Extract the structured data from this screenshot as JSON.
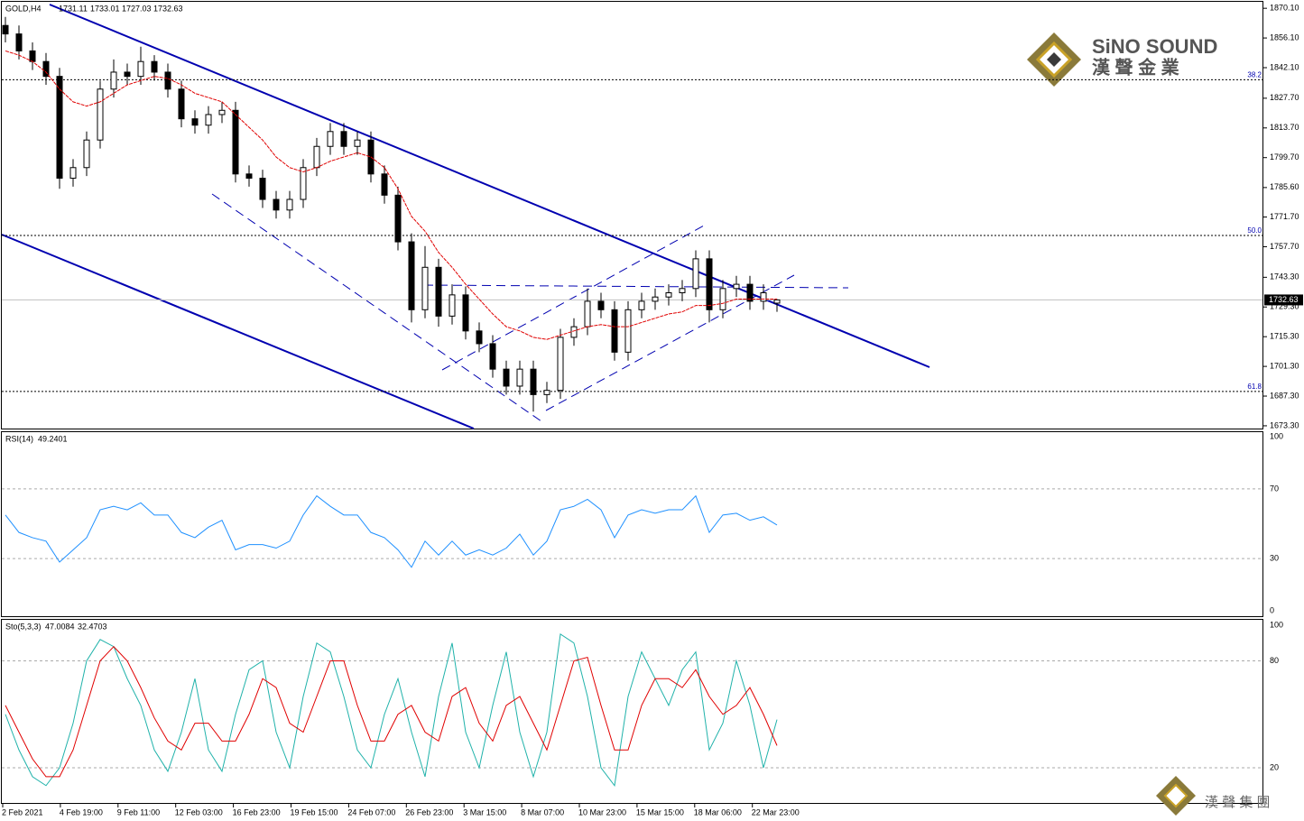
{
  "chart_data": {
    "type": "candlestick",
    "symbol": "GOLD,H4",
    "x_labels": [
      "2 Feb 2021",
      "4 Feb 19:00",
      "9 Feb 11:00",
      "12 Feb 03:00",
      "16 Feb 23:00",
      "19 Feb 15:00",
      "24 Feb 07:00",
      "26 Feb 23:00",
      "3 Mar 15:00",
      "8 Mar 07:00",
      "10 Mar 23:00",
      "15 Mar 15:00",
      "18 Mar 06:00",
      "22 Mar 23:00"
    ],
    "open": [
      1862,
      1858,
      1850,
      1845,
      1838,
      1790,
      1795,
      1808,
      1832,
      1840,
      1838,
      1845,
      1840,
      1832,
      1818,
      1815,
      1820,
      1822,
      1792,
      1790,
      1780,
      1775,
      1780,
      1795,
      1805,
      1812,
      1805,
      1808,
      1792,
      1782,
      1760,
      1728,
      1748,
      1725,
      1735,
      1718,
      1712,
      1700,
      1692,
      1700,
      1688,
      1690,
      1715,
      1720,
      1732,
      1728,
      1708,
      1728,
      1732,
      1734,
      1736,
      1738,
      1752,
      1728,
      1738,
      1740,
      1732,
      1731.11
    ],
    "high": [
      1866,
      1862,
      1854,
      1849,
      1842,
      1799,
      1812,
      1836,
      1846,
      1844,
      1852,
      1848,
      1844,
      1836,
      1822,
      1824,
      1826,
      1826,
      1796,
      1794,
      1784,
      1784,
      1799,
      1809,
      1816,
      1816,
      1812,
      1812,
      1796,
      1786,
      1764,
      1758,
      1752,
      1740,
      1739,
      1722,
      1716,
      1704,
      1704,
      1704,
      1694,
      1719,
      1724,
      1738,
      1736,
      1732,
      1732,
      1736,
      1738,
      1740,
      1742,
      1756,
      1756,
      1742,
      1744,
      1744,
      1740,
      1733.01
    ],
    "low": [
      1854,
      1846,
      1841,
      1834,
      1785,
      1786,
      1791,
      1804,
      1828,
      1834,
      1834,
      1836,
      1828,
      1814,
      1811,
      1811,
      1816,
      1788,
      1786,
      1776,
      1771,
      1771,
      1776,
      1791,
      1801,
      1801,
      1801,
      1788,
      1778,
      1756,
      1722,
      1724,
      1720,
      1721,
      1714,
      1708,
      1696,
      1688,
      1688,
      1680,
      1684,
      1686,
      1711,
      1716,
      1724,
      1704,
      1704,
      1724,
      1728,
      1730,
      1732,
      1734,
      1722,
      1724,
      1734,
      1728,
      1728,
      1727.03
    ],
    "close": [
      1858,
      1850,
      1845,
      1838,
      1790,
      1795,
      1808,
      1832,
      1840,
      1838,
      1845,
      1840,
      1832,
      1818,
      1815,
      1820,
      1822,
      1792,
      1790,
      1780,
      1775,
      1780,
      1795,
      1805,
      1812,
      1805,
      1808,
      1792,
      1782,
      1760,
      1728,
      1748,
      1725,
      1735,
      1718,
      1712,
      1700,
      1692,
      1700,
      1688,
      1690,
      1715,
      1720,
      1732,
      1728,
      1708,
      1728,
      1732,
      1734,
      1736,
      1738,
      1752,
      1728,
      1738,
      1740,
      1732,
      1736,
      1732.63
    ],
    "ma": {
      "color": "#e00000",
      "values": [
        1850,
        1848,
        1845,
        1840,
        1832,
        1826,
        1824,
        1826,
        1830,
        1834,
        1836,
        1838,
        1837,
        1834,
        1830,
        1828,
        1826,
        1820,
        1814,
        1808,
        1800,
        1795,
        1793,
        1795,
        1798,
        1800,
        1802,
        1800,
        1795,
        1785,
        1772,
        1765,
        1755,
        1748,
        1740,
        1733,
        1726,
        1720,
        1718,
        1715,
        1714,
        1716,
        1718,
        1720,
        1721,
        1720,
        1720,
        1722,
        1724,
        1726,
        1727,
        1730,
        1730,
        1731,
        1733,
        1733,
        1733,
        1733
      ]
    },
    "ylim": [
      1672,
      1874
    ],
    "yticks": [
      {
        "value": 1870.1,
        "label": "1870.10"
      },
      {
        "value": 1856.1,
        "label": "1856.10"
      },
      {
        "value": 1842.1,
        "label": "1842.10"
      },
      {
        "value": 1827.7,
        "label": "1827.70"
      },
      {
        "value": 1813.7,
        "label": "1813.70"
      },
      {
        "value": 1799.7,
        "label": "1799.70"
      },
      {
        "value": 1785.6,
        "label": "1785.60"
      },
      {
        "value": 1771.7,
        "label": "1771.70"
      },
      {
        "value": 1757.7,
        "label": "1757.70"
      },
      {
        "value": 1743.3,
        "label": "1743.30"
      },
      {
        "value": 1729.3,
        "label": "1729.30"
      },
      {
        "value": 1715.3,
        "label": "1715.30"
      },
      {
        "value": 1701.3,
        "label": "1701.30"
      },
      {
        "value": 1687.3,
        "label": "1687.30"
      },
      {
        "value": 1673.3,
        "label": "1673.30"
      }
    ],
    "fib_levels": [
      {
        "value": 1836.4,
        "label": "38.2"
      },
      {
        "value": 1763,
        "label": "50.0"
      },
      {
        "value": 1689.5,
        "label": "61.8"
      }
    ],
    "rsi": {
      "label": "RSI(14)",
      "color": "#1e90ff",
      "ylim": [
        0,
        100
      ],
      "yticks": [
        0,
        30,
        70,
        100
      ],
      "values": [
        55,
        45,
        42,
        40,
        28,
        35,
        42,
        58,
        60,
        58,
        62,
        55,
        55,
        45,
        42,
        48,
        52,
        35,
        38,
        38,
        36,
        40,
        55,
        66,
        60,
        55,
        55,
        45,
        42,
        35,
        25,
        40,
        32,
        40,
        32,
        35,
        32,
        36,
        44,
        32,
        40,
        58,
        60,
        64,
        58,
        42,
        55,
        58,
        56,
        58,
        58,
        66,
        45,
        55,
        56,
        52,
        54,
        49.2401
      ]
    },
    "stochastic": {
      "label": "Sto(5,3,3)",
      "ylim": [
        0,
        100
      ],
      "yticks": [
        20,
        80,
        100
      ],
      "series": [
        {
          "color": "#20b2aa",
          "values": [
            50,
            30,
            15,
            10,
            20,
            45,
            80,
            92,
            88,
            70,
            55,
            30,
            18,
            40,
            70,
            30,
            18,
            50,
            75,
            80,
            40,
            20,
            60,
            90,
            85,
            60,
            30,
            20,
            50,
            70,
            40,
            15,
            60,
            90,
            40,
            20,
            55,
            85,
            40,
            15,
            40,
            95,
            90,
            60,
            20,
            10,
            60,
            85,
            70,
            55,
            75,
            85,
            30,
            45,
            80,
            55,
            20,
            47.0084
          ]
        },
        {
          "color": "#e00000",
          "values": [
            55,
            40,
            25,
            15,
            15,
            30,
            55,
            80,
            88,
            80,
            65,
            48,
            35,
            30,
            45,
            45,
            35,
            35,
            50,
            70,
            65,
            45,
            40,
            60,
            80,
            80,
            55,
            35,
            35,
            50,
            55,
            40,
            35,
            60,
            65,
            45,
            35,
            55,
            60,
            45,
            30,
            55,
            80,
            82,
            55,
            30,
            30,
            55,
            70,
            70,
            65,
            75,
            60,
            50,
            55,
            65,
            50,
            32.4703
          ]
        }
      ]
    },
    "logo": {
      "brand": "SiNO SOUND",
      "chinese": "漢 聲 金 業",
      "footer": "漢 聲 集 團"
    }
  }
}
